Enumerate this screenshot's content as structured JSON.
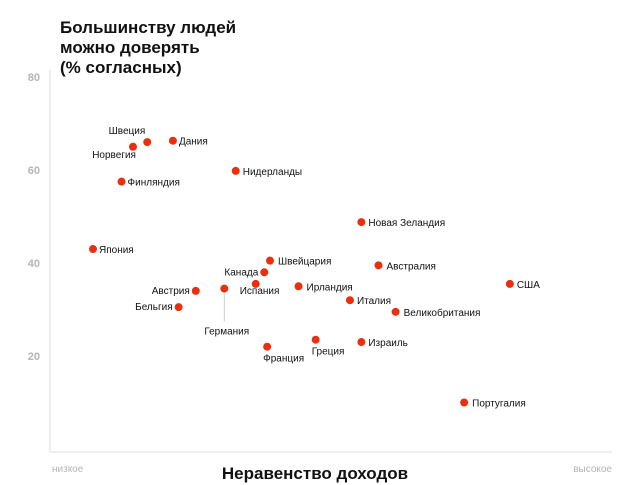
{
  "chart_data": {
    "type": "scatter",
    "title_lines": [
      "Большинству людей",
      "можно доверять",
      "(% согласных)"
    ],
    "xlabel": "Неравенство доходов",
    "x_low_label": "низкое",
    "x_high_label": "высокое",
    "ylim": [
      0,
      85
    ],
    "yticks": [
      20,
      40,
      60,
      80
    ],
    "point_color": "#e8300f",
    "points": [
      {
        "name": "Швеция",
        "x": 3.85,
        "y": 66.0
      },
      {
        "name": "Дания",
        "x": 4.3,
        "y": 66.3
      },
      {
        "name": "Норвегия",
        "x": 3.6,
        "y": 65.0
      },
      {
        "name": "Финляндия",
        "x": 3.4,
        "y": 57.5
      },
      {
        "name": "Нидерланды",
        "x": 5.4,
        "y": 59.8
      },
      {
        "name": "Новая Зеландия",
        "x": 7.6,
        "y": 48.8
      },
      {
        "name": "Япония",
        "x": 2.9,
        "y": 43.0
      },
      {
        "name": "Швейцария",
        "x": 6.0,
        "y": 40.5
      },
      {
        "name": "Канада",
        "x": 5.9,
        "y": 38.0
      },
      {
        "name": "Австралия",
        "x": 7.9,
        "y": 39.5
      },
      {
        "name": "США",
        "x": 10.2,
        "y": 35.5
      },
      {
        "name": "Испания",
        "x": 5.75,
        "y": 35.5
      },
      {
        "name": "Ирландия",
        "x": 6.5,
        "y": 35.0
      },
      {
        "name": "Австрия",
        "x": 4.7,
        "y": 34.0
      },
      {
        "name": "Германия",
        "x": 5.2,
        "y": 34.5
      },
      {
        "name": "Италия",
        "x": 7.4,
        "y": 32.0
      },
      {
        "name": "Бельгия",
        "x": 4.4,
        "y": 30.5
      },
      {
        "name": "Великобритания",
        "x": 8.2,
        "y": 29.5
      },
      {
        "name": "Греция",
        "x": 6.8,
        "y": 23.5
      },
      {
        "name": "Израиль",
        "x": 7.6,
        "y": 23.0
      },
      {
        "name": "Франция",
        "x": 5.95,
        "y": 22.0
      },
      {
        "name": "Португалия",
        "x": 9.4,
        "y": 10.0
      }
    ]
  }
}
